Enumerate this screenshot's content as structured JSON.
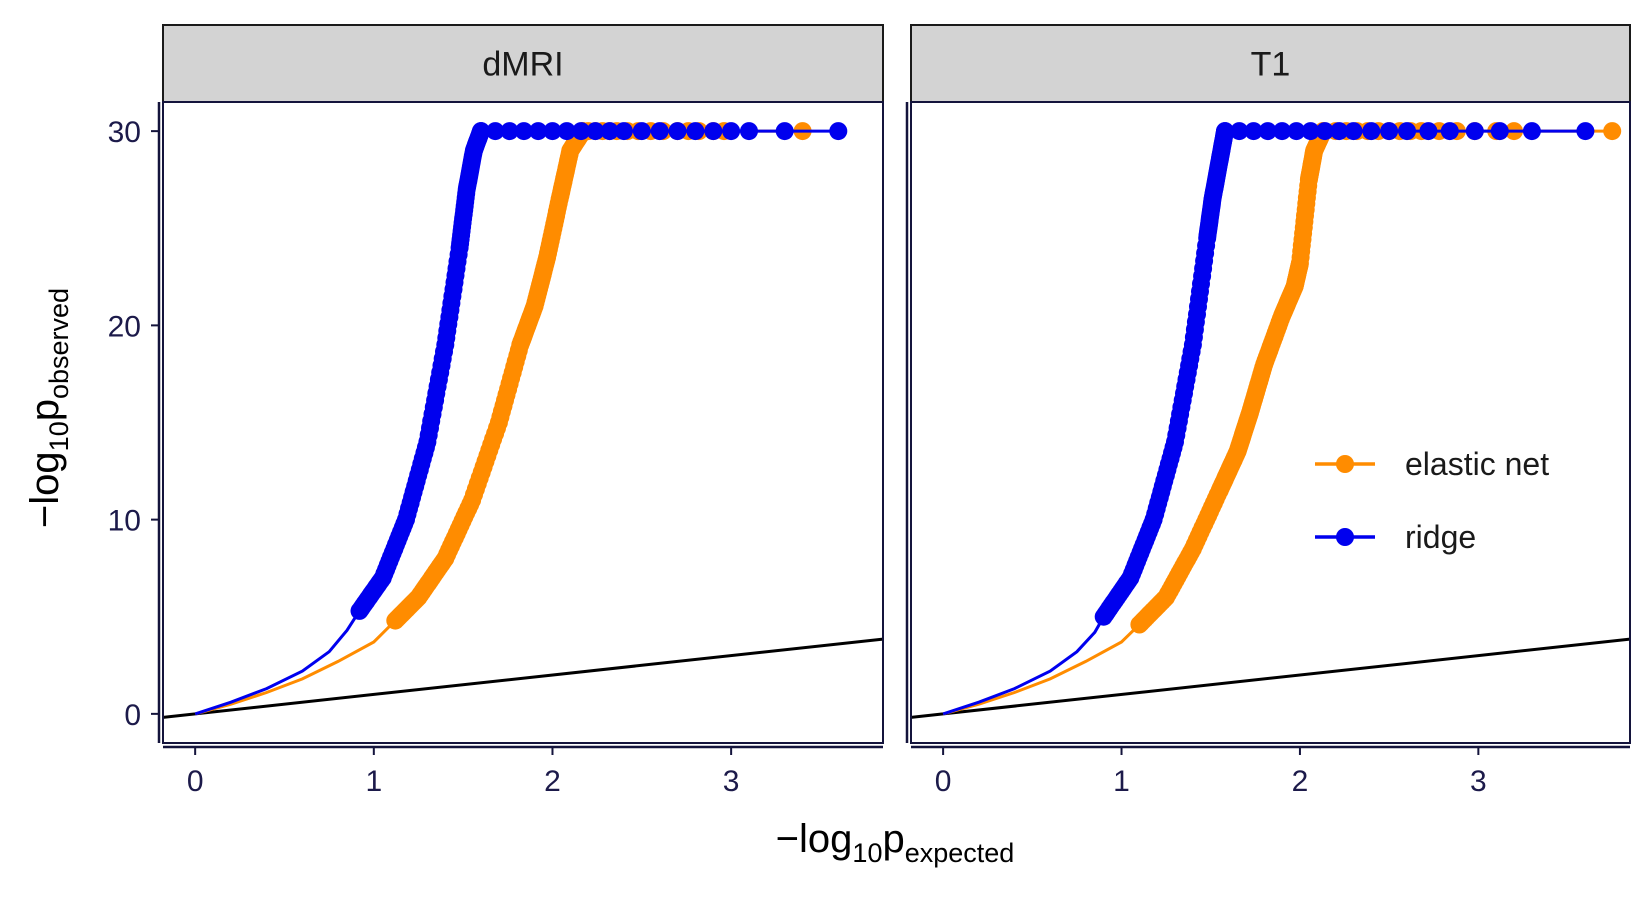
{
  "chart_data": {
    "type": "line",
    "x_title": {
      "prefix": "−log",
      "sub": "10",
      "main": "p",
      "suffix": "expected"
    },
    "y_title": {
      "prefix": "−log",
      "sub": "10",
      "main": "p",
      "suffix": "observed"
    },
    "xlim": [
      -0.18,
      3.85
    ],
    "ylim": [
      -1.5,
      31.5
    ],
    "x_ticks": [
      0,
      1,
      2,
      3
    ],
    "y_ticks": [
      0,
      10,
      20,
      30
    ],
    "reference_line": {
      "description": "y = x",
      "color": "#000000"
    },
    "legend": {
      "position": "right-middle",
      "entries": [
        {
          "name": "elastic net",
          "color": "#FF8C00"
        },
        {
          "name": "ridge",
          "color": "#0000EE"
        }
      ]
    },
    "panels": [
      {
        "title": "dMRI",
        "series": [
          {
            "name": "elastic net",
            "color": "#FF8C00",
            "line": [
              [
                0,
                0
              ],
              [
                0.2,
                0.5
              ],
              [
                0.4,
                1.1
              ],
              [
                0.6,
                1.8
              ],
              [
                0.8,
                2.7
              ],
              [
                1.0,
                3.7
              ],
              [
                1.12,
                4.8
              ]
            ],
            "points_curve": [
              [
                1.12,
                4.8
              ],
              [
                1.25,
                6.0
              ],
              [
                1.4,
                8.0
              ],
              [
                1.55,
                11.0
              ],
              [
                1.7,
                15.0
              ],
              [
                1.82,
                19.0
              ],
              [
                1.9,
                21.0
              ],
              [
                1.97,
                23.5
              ],
              [
                2.04,
                26.5
              ],
              [
                2.1,
                29.0
              ],
              [
                2.17,
                30.0
              ]
            ],
            "points_flat": [
              2.17,
              2.2,
              2.24,
              2.28,
              2.32,
              2.36,
              2.42,
              2.48,
              2.55,
              2.62,
              2.7,
              2.76,
              2.82,
              2.9,
              2.96,
              3.4
            ]
          },
          {
            "name": "ridge",
            "color": "#0000EE",
            "line": [
              [
                0,
                0
              ],
              [
                0.2,
                0.6
              ],
              [
                0.4,
                1.3
              ],
              [
                0.6,
                2.2
              ],
              [
                0.75,
                3.2
              ],
              [
                0.85,
                4.3
              ],
              [
                0.92,
                5.3
              ]
            ],
            "points_curve": [
              [
                0.92,
                5.3
              ],
              [
                1.05,
                7.0
              ],
              [
                1.18,
                10.0
              ],
              [
                1.3,
                14.0
              ],
              [
                1.4,
                19.0
              ],
              [
                1.48,
                24.0
              ],
              [
                1.52,
                27.0
              ],
              [
                1.56,
                29.0
              ],
              [
                1.6,
                30.0
              ]
            ],
            "points_flat": [
              1.6,
              1.68,
              1.76,
              1.84,
              1.92,
              2.0,
              2.08,
              2.16,
              2.24,
              2.32,
              2.4,
              2.5,
              2.6,
              2.7,
              2.8,
              2.9,
              3.0,
              3.1,
              3.3,
              3.6
            ]
          }
        ]
      },
      {
        "title": "T1",
        "series": [
          {
            "name": "elastic net",
            "color": "#FF8C00",
            "line": [
              [
                0,
                0
              ],
              [
                0.2,
                0.5
              ],
              [
                0.4,
                1.1
              ],
              [
                0.6,
                1.8
              ],
              [
                0.8,
                2.7
              ],
              [
                1.0,
                3.7
              ],
              [
                1.1,
                4.6
              ]
            ],
            "points_curve": [
              [
                1.1,
                4.6
              ],
              [
                1.25,
                6.0
              ],
              [
                1.4,
                8.5
              ],
              [
                1.55,
                11.5
              ],
              [
                1.65,
                13.5
              ],
              [
                1.72,
                15.5
              ],
              [
                1.8,
                18.0
              ],
              [
                1.9,
                20.5
              ],
              [
                1.97,
                22.0
              ],
              [
                2.0,
                23.2
              ],
              [
                2.05,
                27.5
              ],
              [
                2.08,
                29.0
              ],
              [
                2.13,
                30.0
              ]
            ],
            "points_flat": [
              2.13,
              2.2,
              2.26,
              2.32,
              2.38,
              2.44,
              2.5,
              2.56,
              2.62,
              2.68,
              2.78,
              2.88,
              2.98,
              3.1,
              3.2,
              3.75
            ]
          },
          {
            "name": "ridge",
            "color": "#0000EE",
            "line": [
              [
                0,
                0
              ],
              [
                0.2,
                0.6
              ],
              [
                0.4,
                1.3
              ],
              [
                0.6,
                2.2
              ],
              [
                0.75,
                3.2
              ],
              [
                0.85,
                4.2
              ],
              [
                0.9,
                5.0
              ]
            ],
            "points_curve": [
              [
                0.9,
                5.0
              ],
              [
                1.05,
                7.0
              ],
              [
                1.18,
                10.0
              ],
              [
                1.3,
                14.0
              ],
              [
                1.4,
                19.0
              ],
              [
                1.48,
                24.5
              ],
              [
                1.51,
                26.5
              ],
              [
                1.55,
                28.5
              ],
              [
                1.58,
                30.0
              ]
            ],
            "points_flat": [
              1.58,
              1.66,
              1.74,
              1.82,
              1.9,
              1.98,
              2.06,
              2.14,
              2.22,
              2.3,
              2.4,
              2.5,
              2.6,
              2.72,
              2.84,
              2.98,
              3.12,
              3.3,
              3.6
            ]
          }
        ]
      }
    ]
  }
}
